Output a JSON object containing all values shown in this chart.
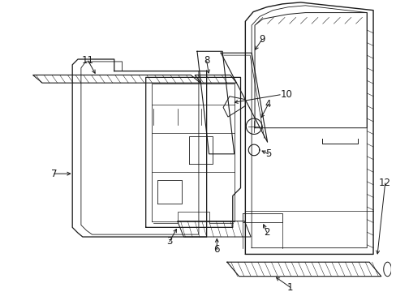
{
  "background_color": "#ffffff",
  "line_color": "#1a1a1a",
  "fig_width": 4.89,
  "fig_height": 3.6,
  "dpi": 100,
  "label_fontsize": 8.5
}
